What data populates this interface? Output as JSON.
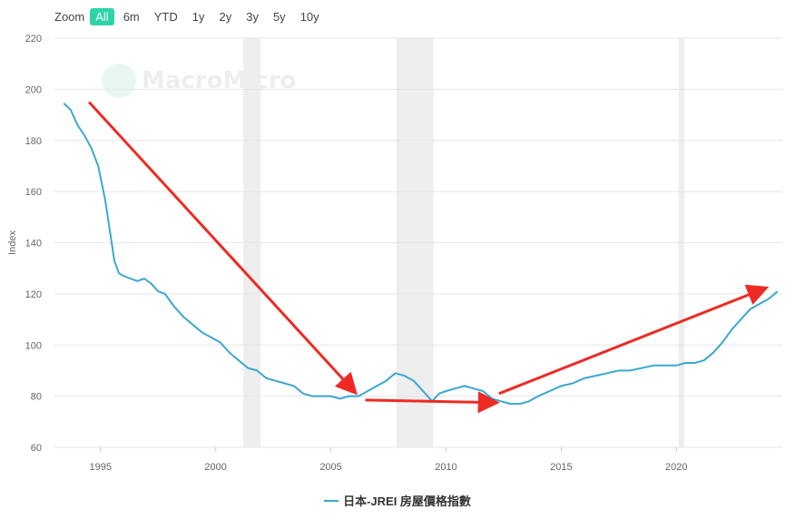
{
  "zoom": {
    "label": "Zoom",
    "buttons": [
      "All",
      "6m",
      "YTD",
      "1y",
      "2y",
      "3y",
      "5y",
      "10y"
    ],
    "active": "All"
  },
  "watermark": "MacroMicro",
  "colors": {
    "line": "#3aa8d0",
    "arrow": "#ee2a24",
    "recession": "#eeeeee",
    "accent": "#2dd4a7"
  },
  "chart_data": {
    "type": "line",
    "ylabel": "Index",
    "xlabel": "",
    "xlim": [
      1993,
      2024.6
    ],
    "ylim": [
      60,
      220
    ],
    "yticks": [
      60,
      80,
      100,
      120,
      140,
      160,
      180,
      200,
      220
    ],
    "xticks": [
      1995,
      2000,
      2005,
      2010,
      2015,
      2020
    ],
    "grid": true,
    "legend": "bottom-center",
    "recession_bands": [
      [
        2001.2,
        2001.95
      ],
      [
        2007.85,
        2009.45
      ],
      [
        2020.1,
        2020.35
      ]
    ],
    "series": [
      {
        "name": "日本-JREI 房屋價格指數",
        "x": [
          1993.4,
          1993.7,
          1994.0,
          1994.3,
          1994.6,
          1994.9,
          1995.2,
          1995.4,
          1995.6,
          1995.8,
          1996.0,
          1996.3,
          1996.6,
          1996.9,
          1997.2,
          1997.5,
          1997.8,
          1998.2,
          1998.6,
          1999.0,
          1999.4,
          1999.8,
          2000.2,
          2000.6,
          2001.0,
          2001.4,
          2001.8,
          2002.2,
          2002.6,
          2003.0,
          2003.4,
          2003.8,
          2004.2,
          2004.6,
          2005.0,
          2005.4,
          2005.8,
          2006.2,
          2006.6,
          2007.0,
          2007.4,
          2007.8,
          2008.2,
          2008.6,
          2009.0,
          2009.4,
          2009.7,
          2010.0,
          2010.4,
          2010.8,
          2011.2,
          2011.6,
          2012.0,
          2012.4,
          2012.8,
          2013.2,
          2013.6,
          2014.0,
          2014.5,
          2015.0,
          2015.5,
          2016.0,
          2016.5,
          2017.0,
          2017.5,
          2018.0,
          2018.5,
          2019.0,
          2019.5,
          2020.0,
          2020.4,
          2020.8,
          2021.2,
          2021.6,
          2022.0,
          2022.4,
          2022.8,
          2023.2,
          2023.6,
          2024.0,
          2024.4
        ],
        "values": [
          194.5,
          192,
          186,
          182,
          177,
          170,
          157,
          145,
          133,
          128,
          127,
          126,
          125,
          126,
          124,
          121,
          120,
          115,
          111,
          108,
          105,
          103,
          101,
          97,
          94,
          91,
          90,
          87,
          86,
          85,
          84,
          81,
          80,
          80,
          80,
          79,
          80,
          80,
          82,
          84,
          86,
          89,
          88,
          86,
          82,
          78,
          81,
          82,
          83,
          84,
          83,
          82,
          79,
          78,
          77,
          77,
          78,
          80,
          82,
          84,
          85,
          87,
          88,
          89,
          90,
          90,
          91,
          92,
          92,
          92,
          93,
          93,
          94,
          97,
          101,
          106,
          110,
          114,
          116,
          118,
          121
        ]
      }
    ],
    "annotations": {
      "arrows": [
        {
          "from": [
            1994.5,
            195
          ],
          "to": [
            2006.0,
            82
          ]
        },
        {
          "from": [
            2006.5,
            78.5
          ],
          "to": [
            2012.1,
            77.5
          ]
        },
        {
          "from": [
            2012.3,
            81
          ],
          "to": [
            2023.8,
            122
          ]
        }
      ]
    }
  }
}
